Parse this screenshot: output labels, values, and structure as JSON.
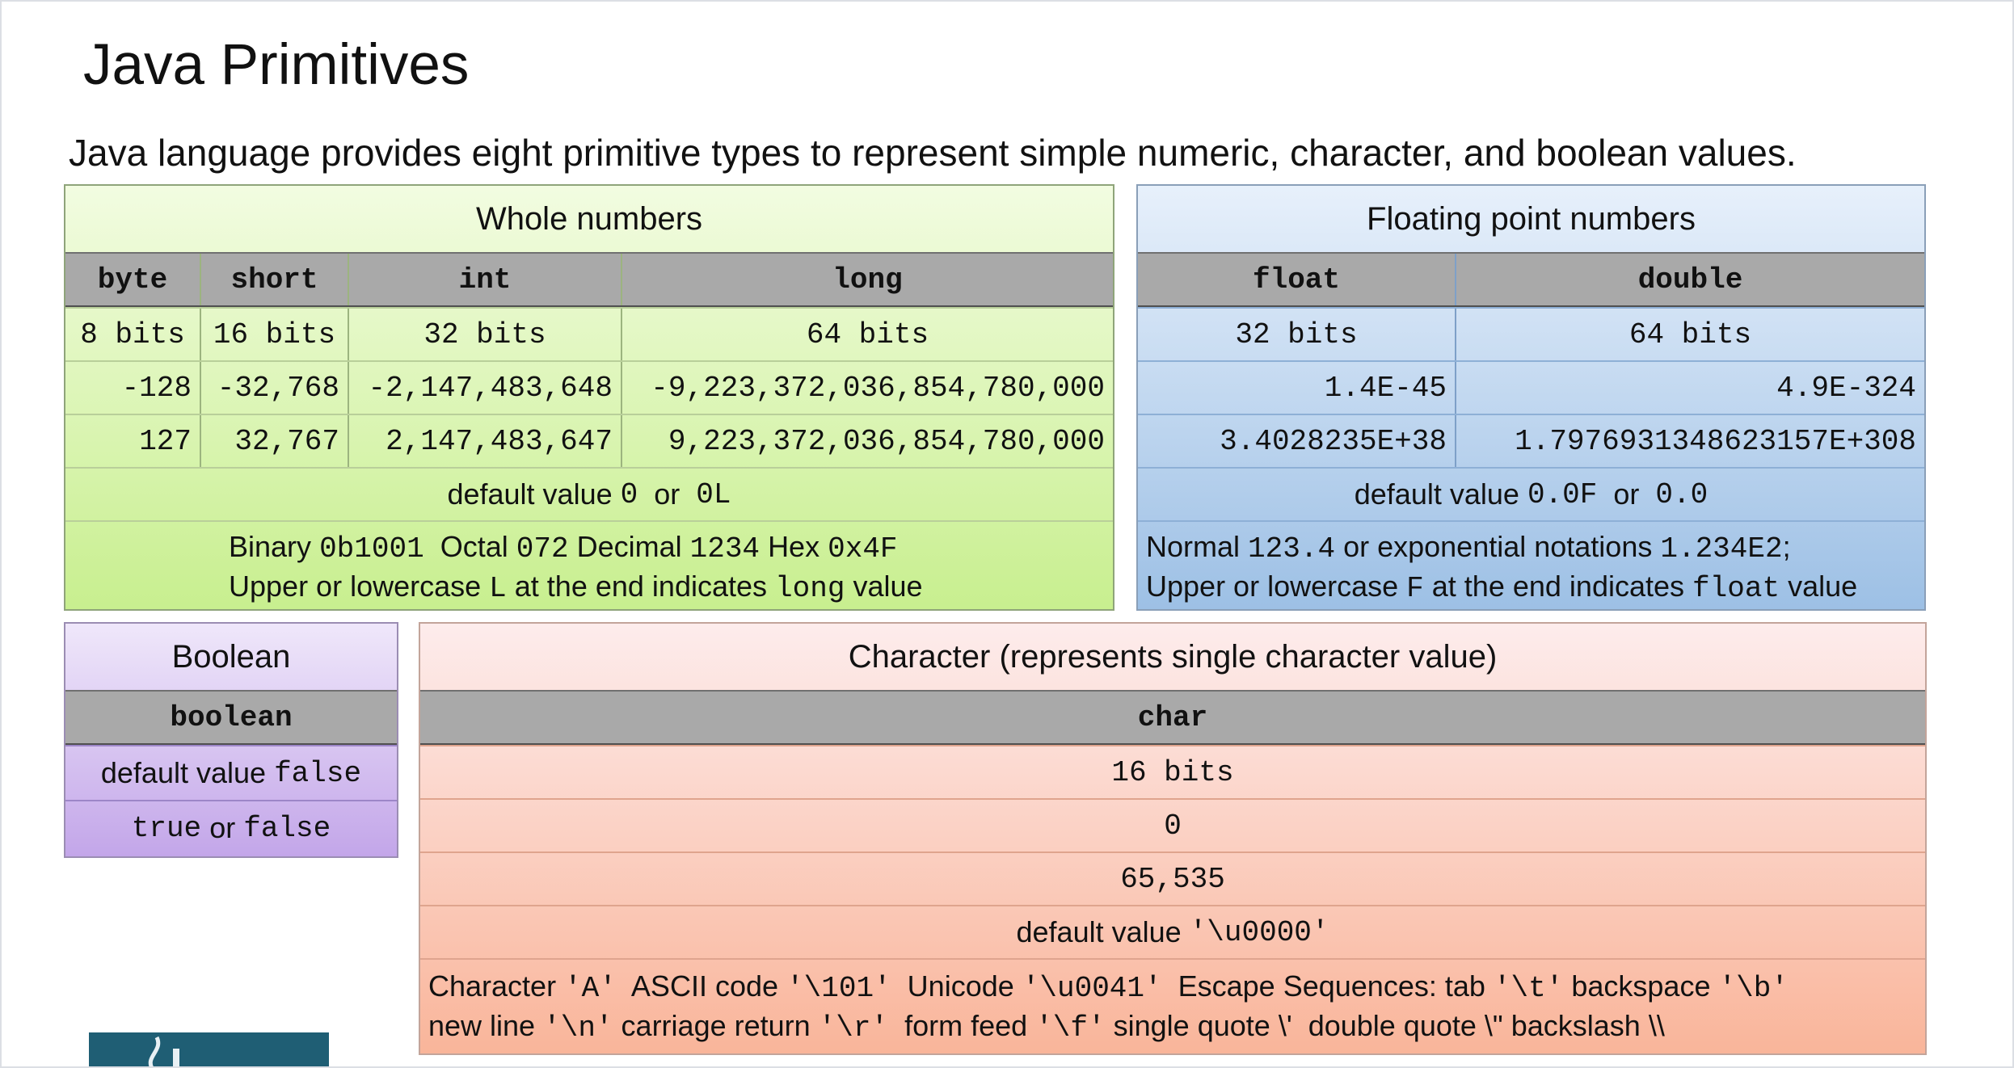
{
  "title": "Java Primitives",
  "subtitle": "Java language provides eight primitive types to represent simple numeric, character, and boolean values.",
  "whole": {
    "heading": "Whole numbers",
    "columns": [
      "byte",
      "short",
      "int",
      "long"
    ],
    "bits": [
      "8 bits",
      "16 bits",
      "32 bits",
      "64 bits"
    ],
    "min": [
      "-128",
      "-32,768",
      "-2,147,483,648",
      "-9,223,372,036,854,780,000"
    ],
    "max": [
      "127",
      "32,767",
      "2,147,483,647",
      "9,223,372,036,854,780,000"
    ],
    "default_label": "default value",
    "default_a": "0",
    "default_or": "or",
    "default_b": "0L",
    "note": {
      "binary_label": "Binary",
      "binary_value": "0b1001",
      "octal_label": "Octal",
      "octal_value": "072",
      "decimal_label": "Decimal",
      "decimal_value": "1234",
      "hex_label": "Hex",
      "hex_value": "0x4F",
      "line2_a": "Upper or lowercase",
      "line2_code1": "L",
      "line2_b": "at the end indicates",
      "line2_code2": "long",
      "line2_c": "value"
    }
  },
  "floating": {
    "heading": "Floating point numbers",
    "columns": [
      "float",
      "double"
    ],
    "bits": [
      "32 bits",
      "64 bits"
    ],
    "min": [
      "1.4E-45",
      "4.9E-324"
    ],
    "max": [
      "3.4028235E+38",
      "1.7976931348623157E+308"
    ],
    "default_label": "default value",
    "default_a": "0.0F",
    "default_or": "or",
    "default_b": "0.0",
    "note": {
      "line1_a": "Normal",
      "line1_code1": "123.4",
      "line1_b": "or exponential notations",
      "line1_code2": "1.234E2",
      "line1_c": ";",
      "line2_a": "Upper or lowercase",
      "line2_code1": "F",
      "line2_b": "at the end indicates",
      "line2_code2": "float",
      "line2_c": "value"
    }
  },
  "boolean": {
    "heading": "Boolean",
    "column": "boolean",
    "default_label": "default value",
    "default_value": "false",
    "values_a": "true",
    "values_or": "or",
    "values_b": "false"
  },
  "character": {
    "heading": "Character (represents single character value)",
    "column": "char",
    "bits": "16 bits",
    "min": "0",
    "max": "65,535",
    "default_label": "default value",
    "default_value": "'\\u0000'",
    "note": {
      "char_label": "Character",
      "char_value": "'A'",
      "ascii_label": "ASCII code",
      "ascii_value": "'\\101'",
      "unicode_label": "Unicode",
      "unicode_value": "'\\u0041'",
      "escape_label": "Escape Sequences: tab",
      "tab_value": "'\\t'",
      "backspace_label": "backspace",
      "backspace_value": "'\\b'",
      "newline_label": "new line",
      "newline_value": "'\\n'",
      "cr_label": "carriage return",
      "cr_value": "'\\r'",
      "ff_label": "form feed",
      "ff_value": "'\\f'",
      "sq_label": "single quote",
      "sq_value": "\\'",
      "dq_label": "double quote",
      "dq_value": "\\\"",
      "bs_label": "backslash",
      "bs_value": "\\\\"
    }
  }
}
